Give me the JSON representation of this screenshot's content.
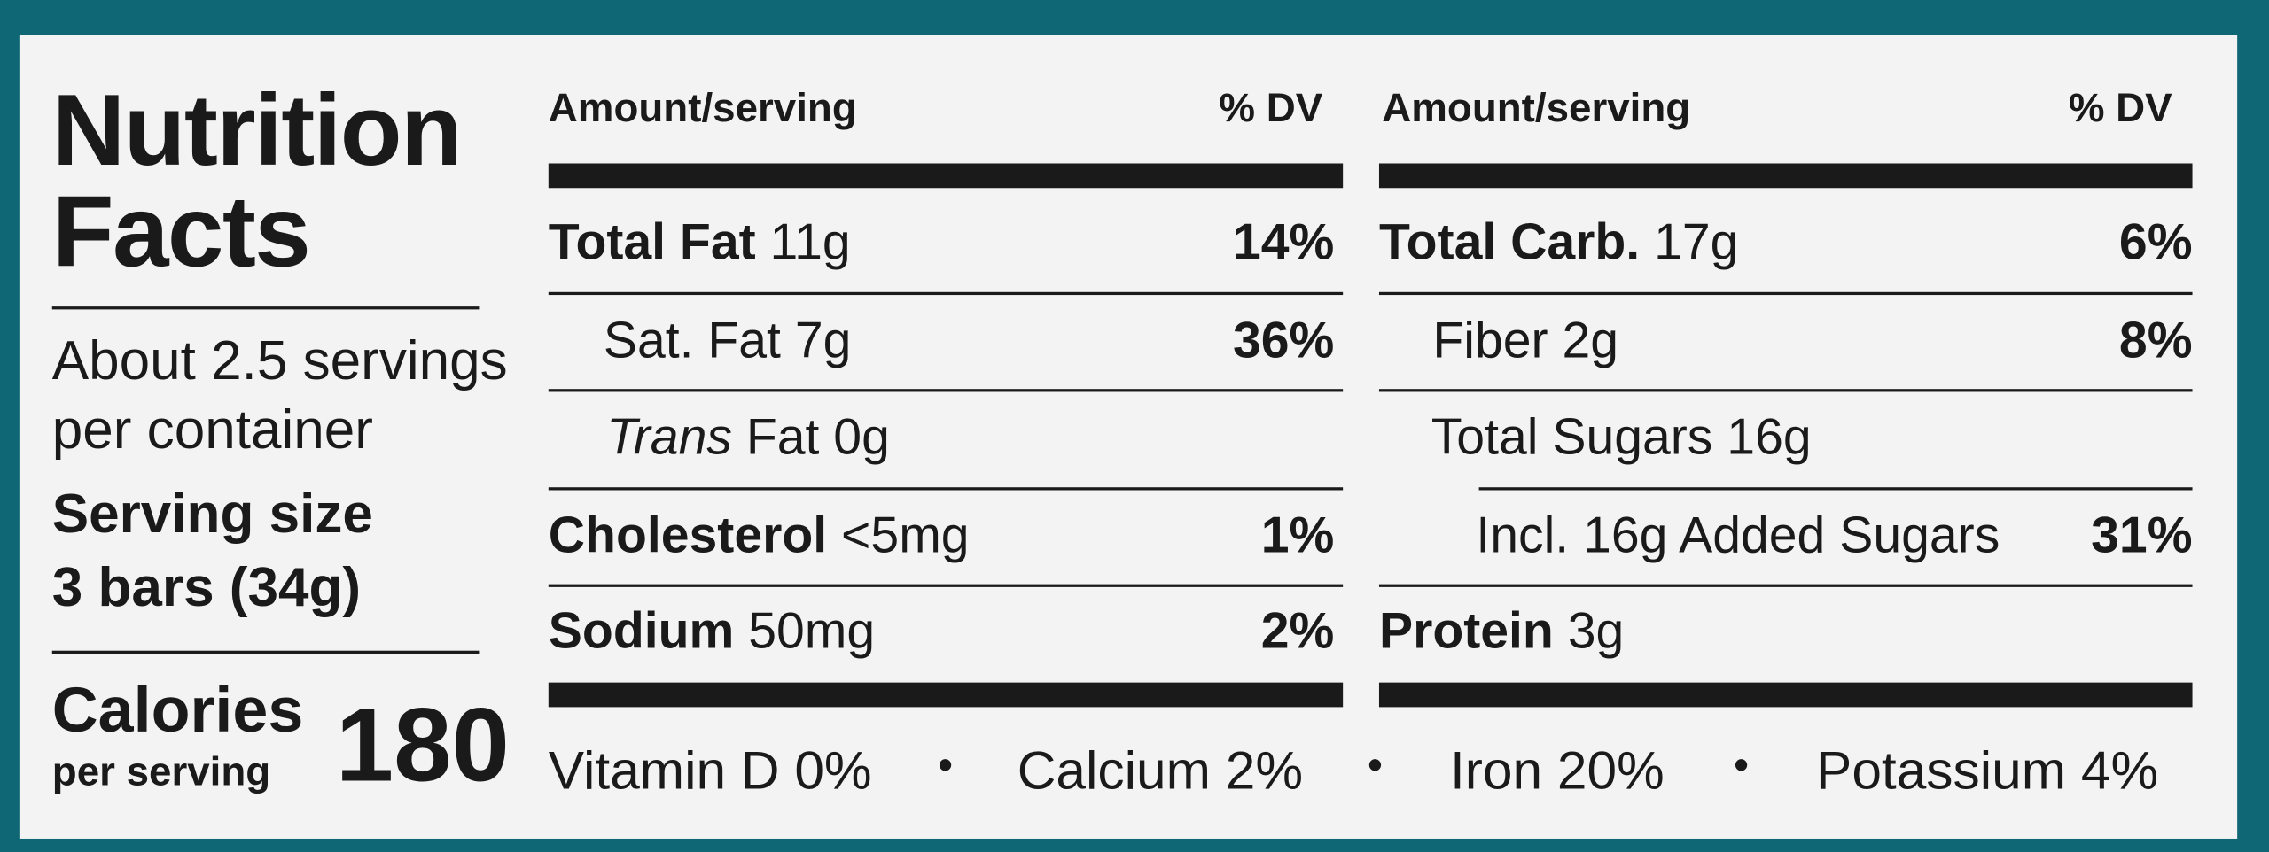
{
  "title_lines": [
    "Nutrition",
    "Facts"
  ],
  "servings_lines": [
    "About 2.5 servings",
    "per container"
  ],
  "serving_size": {
    "label": "Serving size",
    "value": "3 bars (34g)"
  },
  "calories": {
    "label": "Calories",
    "sublabel": "per serving",
    "value": 180
  },
  "columns": [
    {
      "header": {
        "amount": "Amount/serving",
        "dv": "% DV"
      },
      "rows": [
        {
          "name": "Total Fat",
          "amount": "11g",
          "dv": "14%"
        },
        {
          "name": "Sat. Fat",
          "amount": "7g",
          "dv": "36%"
        },
        {
          "name_italic": "Trans",
          "name": "Fat",
          "amount": "0g"
        },
        {
          "name": "Cholesterol",
          "amount": "<5mg",
          "dv": "1%"
        },
        {
          "name": "Sodium",
          "amount": "50mg",
          "dv": "2%"
        }
      ]
    },
    {
      "header": {
        "amount": "Amount/serving",
        "dv": "% DV"
      },
      "rows": [
        {
          "name": "Total Carb.",
          "amount": "17g",
          "dv": "6%"
        },
        {
          "name": "Fiber",
          "amount": "2g",
          "dv": "8%"
        },
        {
          "name": "Total Sugars",
          "amount": "16g"
        },
        {
          "name": "Incl. 16g Added Sugars",
          "dv": "31%"
        },
        {
          "name": "Protein",
          "amount": "3g"
        }
      ]
    }
  ],
  "vitamins": [
    "Vitamin D 0%",
    "Calcium 2%",
    "Iron 20%",
    "Potassium 4%"
  ]
}
